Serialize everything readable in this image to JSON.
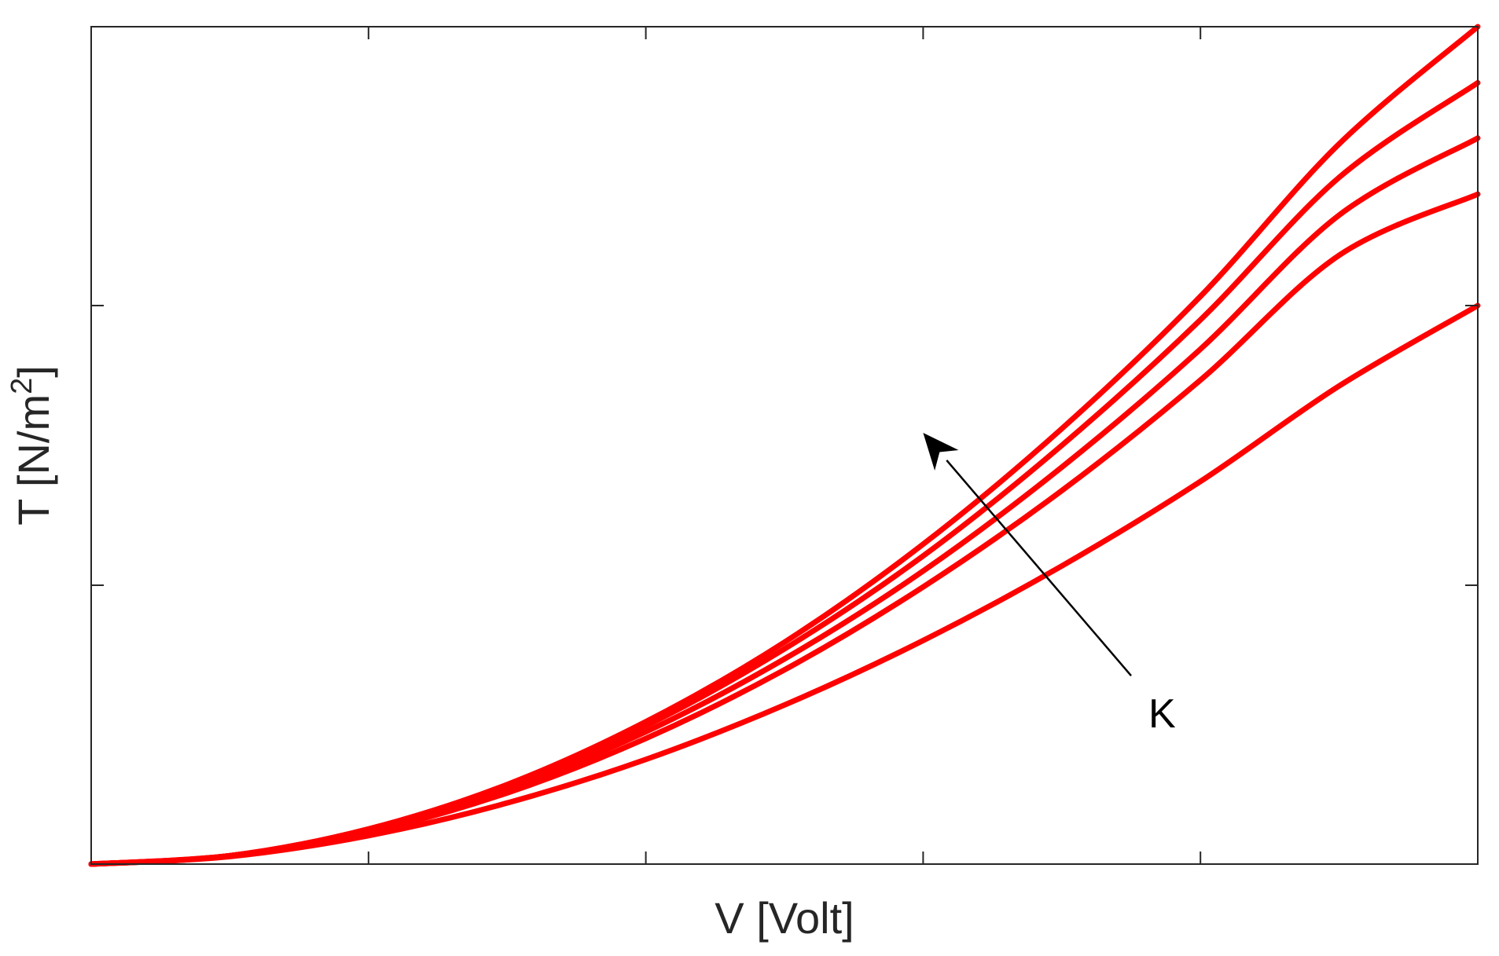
{
  "chart_data": {
    "type": "line",
    "title": "",
    "xlabel": "V [Volt]",
    "ylabel_main": "T [N/m",
    "ylabel_sup": "2",
    "ylabel_close": "]",
    "xlim": [
      0,
      1
    ],
    "ylim": [
      0,
      1
    ],
    "x_ticks": [
      0,
      0.2,
      0.4,
      0.6,
      0.8,
      1.0
    ],
    "y_ticks": [
      0,
      0.333,
      0.667,
      1.0
    ],
    "tick_labels_shown": false,
    "grid": false,
    "legend": "none",
    "series_color": "#ff0000",
    "series": [
      {
        "x": [
          0,
          0.1,
          0.2,
          0.3,
          0.4,
          0.5,
          0.6,
          0.7,
          0.8,
          0.9,
          1.0
        ],
        "values": [
          0,
          0.009,
          0.034,
          0.073,
          0.125,
          0.19,
          0.267,
          0.356,
          0.457,
          0.571,
          0.667
        ]
      },
      {
        "x": [
          0,
          0.1,
          0.2,
          0.3,
          0.4,
          0.5,
          0.6,
          0.7,
          0.8,
          0.9,
          1.0
        ],
        "values": [
          0,
          0.01,
          0.038,
          0.085,
          0.15,
          0.232,
          0.331,
          0.446,
          0.578,
          0.727,
          0.8
        ]
      },
      {
        "x": [
          0,
          0.1,
          0.2,
          0.3,
          0.4,
          0.5,
          0.6,
          0.7,
          0.8,
          0.9,
          1.0
        ],
        "values": [
          0,
          0.01,
          0.04,
          0.09,
          0.158,
          0.245,
          0.35,
          0.474,
          0.615,
          0.775,
          0.867
        ]
      },
      {
        "x": [
          0,
          0.1,
          0.2,
          0.3,
          0.4,
          0.5,
          0.6,
          0.7,
          0.8,
          0.9,
          1.0
        ],
        "values": [
          0,
          0.01,
          0.041,
          0.093,
          0.165,
          0.257,
          0.368,
          0.5,
          0.65,
          0.82,
          0.933
        ]
      },
      {
        "x": [
          0,
          0.1,
          0.2,
          0.3,
          0.4,
          0.5,
          0.6,
          0.7,
          0.8,
          0.9,
          1.0
        ],
        "values": [
          0,
          0.01,
          0.042,
          0.095,
          0.17,
          0.265,
          0.382,
          0.52,
          0.678,
          0.86,
          1.0
        ]
      }
    ],
    "annotation": {
      "text": "K",
      "arrow_from": [
        0.75,
        0.225
      ],
      "arrow_to": [
        0.6,
        0.515
      ]
    }
  }
}
